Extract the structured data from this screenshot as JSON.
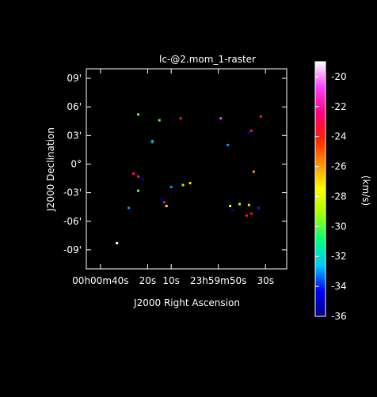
{
  "plot": {
    "title": "lc-@2.mom_1-raster",
    "xlabel": "J2000 Right Ascension",
    "ylabel": "J2000 Declination",
    "colorbar_label": "(km/s)",
    "x_ticks": [
      {
        "label": "00h00m40s"
      },
      {
        "label": "20s"
      },
      {
        "label": "10s"
      },
      {
        "label": "23h59m50s"
      },
      {
        "label": "30s"
      }
    ],
    "y_ticks": [
      "09'",
      "06'",
      "03'",
      "0°",
      "-03'",
      "-06'",
      "-09'"
    ],
    "colorbar_ticks": [
      "-20",
      "-22",
      "-24",
      "-26",
      "-28",
      "-30",
      "-32",
      "-34",
      "-36"
    ],
    "colorbar_range": [
      -36,
      -19
    ],
    "colors": {
      "background": "#000000",
      "axes": "#ffffff",
      "colormap": [
        "#000080",
        "#0000ff",
        "#00c8ff",
        "#00ff80",
        "#a0ff00",
        "#ffff00",
        "#ff9000",
        "#ff2000",
        "#ff0080",
        "#ff40ff",
        "#ffffff"
      ]
    }
  },
  "chart_data": {
    "type": "scatter",
    "title": "lc-@2.mom_1-raster",
    "xlabel": "J2000 Right Ascension",
    "ylabel": "J2000 Declination",
    "x_unit": "seconds of RA relative to 00h00m00s",
    "y_unit": "arcmin",
    "xlim": [
      46,
      -39
    ],
    "ylim": [
      -11,
      10
    ],
    "points": [
      {
        "x": 24,
        "y": 5.2,
        "v": -30
      },
      {
        "x": 15,
        "y": 4.6,
        "v": -30
      },
      {
        "x": 18,
        "y": 2.4,
        "v": -32
      },
      {
        "x": 18,
        "y": 2.3,
        "v": -33
      },
      {
        "x": 6,
        "y": 4.8,
        "v": -23
      },
      {
        "x": -11,
        "y": 4.8,
        "v": -21
      },
      {
        "x": -24,
        "y": 3.5,
        "v": -24
      },
      {
        "x": -23,
        "y": 3.3,
        "v": -35
      },
      {
        "x": -14,
        "y": 2.0,
        "v": -33
      },
      {
        "x": -28,
        "y": 5.0,
        "v": -24
      },
      {
        "x": 26,
        "y": -1.0,
        "v": -23
      },
      {
        "x": 24,
        "y": -1.3,
        "v": -22
      },
      {
        "x": 22,
        "y": -1.6,
        "v": -35
      },
      {
        "x": 2,
        "y": -2.0,
        "v": -27
      },
      {
        "x": 5,
        "y": -2.2,
        "v": -29
      },
      {
        "x": 10,
        "y": -2.4,
        "v": -33
      },
      {
        "x": -25,
        "y": -0.8,
        "v": -26
      },
      {
        "x": 24,
        "y": -2.8,
        "v": -30
      },
      {
        "x": 13,
        "y": -4.0,
        "v": -23
      },
      {
        "x": 12,
        "y": -4.4,
        "v": -27
      },
      {
        "x": 14,
        "y": -3.7,
        "v": -35
      },
      {
        "x": -15,
        "y": -4.4,
        "v": -28
      },
      {
        "x": -19,
        "y": -4.2,
        "v": -29
      },
      {
        "x": -23,
        "y": -4.3,
        "v": -27
      },
      {
        "x": -24,
        "y": -5.2,
        "v": -24
      },
      {
        "x": -22,
        "y": -5.4,
        "v": -23
      },
      {
        "x": -27,
        "y": -4.6,
        "v": -34
      },
      {
        "x": -16,
        "y": -4.8,
        "v": -35
      },
      {
        "x": 28,
        "y": -4.6,
        "v": -33
      },
      {
        "x": 33,
        "y": -8.3,
        "v": -19
      }
    ]
  }
}
